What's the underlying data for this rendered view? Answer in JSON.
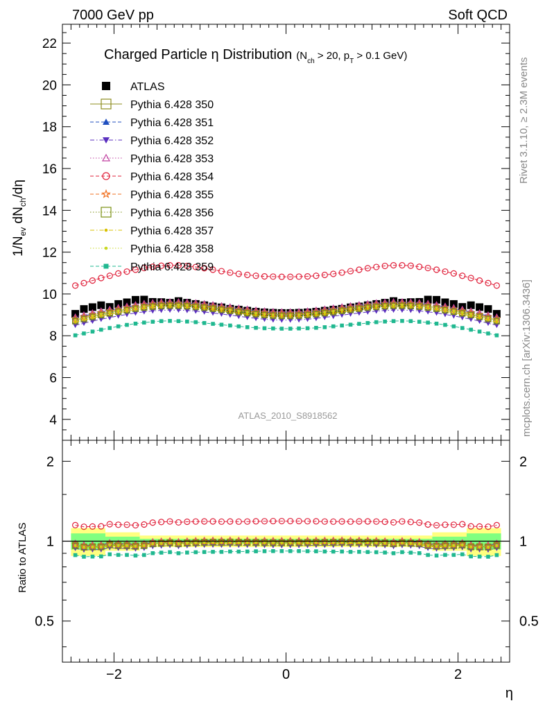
{
  "header": {
    "left": "7000 GeV pp",
    "right": "Soft QCD"
  },
  "side": {
    "rivet": "Rivet 3.1.10, ≥ 2.3M events",
    "mcplots": "mcplots.cern.ch [arXiv:1306.3436]"
  },
  "title": {
    "main": "Charged Particle η Distribution",
    "sub_open": "(N",
    "sub_ch": "ch",
    "sub_mid": " > 20, p",
    "sub_T": "T",
    "sub_close": " > 0.1 GeV)"
  },
  "watermark": "ATLAS_2010_S8918562",
  "ylabel_top": {
    "a": "1/N",
    "b": "ev",
    "c": " dN",
    "d": "ch",
    "e": "/dη"
  },
  "ylabel_bottom": "Ratio to ATLAS",
  "xlabel": "η",
  "chart_data": [
    {
      "type": "scatter",
      "panel": "main",
      "x_ticks": [
        -2,
        0,
        2
      ],
      "x_tick_labels": [
        "−2",
        "0",
        "2"
      ],
      "y_ticks": [
        4,
        6,
        8,
        10,
        12,
        14,
        16,
        18,
        20,
        22
      ],
      "xlim": [
        -2.6,
        2.6
      ],
      "ylim": [
        3.0,
        22.9
      ],
      "x": [
        -2.45,
        -2.35,
        -2.25,
        -2.15,
        -2.05,
        -1.95,
        -1.85,
        -1.75,
        -1.65,
        -1.55,
        -1.45,
        -1.35,
        -1.25,
        -1.15,
        -1.05,
        -0.95,
        -0.85,
        -0.75,
        -0.65,
        -0.55,
        -0.45,
        -0.35,
        -0.25,
        -0.15,
        -0.05,
        0.05,
        0.15,
        0.25,
        0.35,
        0.45,
        0.55,
        0.65,
        0.75,
        0.85,
        0.95,
        1.05,
        1.15,
        1.25,
        1.35,
        1.45,
        1.55,
        1.65,
        1.75,
        1.85,
        1.95,
        2.05,
        2.15,
        2.25,
        2.35,
        2.45
      ],
      "legend": [
        {
          "name": "ATLAS",
          "color": "#000000",
          "marker": "square-filled",
          "dash": "none"
        },
        {
          "name": "Pythia 6.428 350",
          "color": "#8c8c1e",
          "marker": "square-open",
          "dash": "solid"
        },
        {
          "name": "Pythia 6.428 351",
          "color": "#1f4fbf",
          "marker": "triangle-up-filled",
          "dash": "dashed"
        },
        {
          "name": "Pythia 6.428 352",
          "color": "#5a2fbf",
          "marker": "triangle-down-filled",
          "dash": "dashdot"
        },
        {
          "name": "Pythia 6.428 353",
          "color": "#c040a0",
          "marker": "triangle-up-open",
          "dash": "dotted"
        },
        {
          "name": "Pythia 6.428 354",
          "color": "#e0203a",
          "marker": "circle-open",
          "dash": "dashed"
        },
        {
          "name": "Pythia 6.428 355",
          "color": "#f07020",
          "marker": "star-open",
          "dash": "dashed"
        },
        {
          "name": "Pythia 6.428 356",
          "color": "#7a8f10",
          "marker": "square-open",
          "dash": "dotted"
        },
        {
          "name": "Pythia 6.428 357",
          "color": "#d8c000",
          "marker": "dot-small",
          "dash": "dashdot"
        },
        {
          "name": "Pythia 6.428 358",
          "color": "#c8d820",
          "marker": "dot-small",
          "dash": "dotted"
        },
        {
          "name": "Pythia 6.428 359",
          "color": "#20b890",
          "marker": "square-filled-small",
          "dash": "dashed"
        }
      ],
      "series": [
        {
          "name": "ATLAS",
          "values": [
            9.05,
            9.28,
            9.37,
            9.46,
            9.38,
            9.52,
            9.6,
            9.72,
            9.73,
            9.62,
            9.61,
            9.58,
            9.66,
            9.58,
            9.52,
            9.46,
            9.4,
            9.36,
            9.29,
            9.25,
            9.2,
            9.15,
            9.12,
            9.1,
            9.09,
            9.09,
            9.1,
            9.12,
            9.15,
            9.2,
            9.25,
            9.29,
            9.36,
            9.4,
            9.46,
            9.52,
            9.58,
            9.66,
            9.58,
            9.61,
            9.62,
            9.73,
            9.72,
            9.6,
            9.52,
            9.38,
            9.46,
            9.37,
            9.28,
            9.05
          ]
        },
        {
          "name": "Pythia 6.428 350",
          "values": [
            8.75,
            8.85,
            8.95,
            9.04,
            9.12,
            9.2,
            9.27,
            9.34,
            9.4,
            9.44,
            9.47,
            9.48,
            9.48,
            9.46,
            9.43,
            9.39,
            9.34,
            9.29,
            9.24,
            9.18,
            9.13,
            9.08,
            9.04,
            9.01,
            9.0,
            9.0,
            9.01,
            9.04,
            9.08,
            9.13,
            9.18,
            9.24,
            9.29,
            9.34,
            9.39,
            9.43,
            9.46,
            9.48,
            9.48,
            9.47,
            9.44,
            9.4,
            9.34,
            9.27,
            9.2,
            9.12,
            9.04,
            8.95,
            8.85,
            8.75
          ]
        },
        {
          "name": "Pythia 6.428 351",
          "values": [
            8.85,
            8.95,
            9.05,
            9.14,
            9.22,
            9.3,
            9.37,
            9.44,
            9.5,
            9.54,
            9.57,
            9.58,
            9.58,
            9.56,
            9.53,
            9.49,
            9.44,
            9.39,
            9.34,
            9.28,
            9.23,
            9.18,
            9.14,
            9.11,
            9.1,
            9.1,
            9.11,
            9.14,
            9.18,
            9.23,
            9.28,
            9.34,
            9.39,
            9.44,
            9.49,
            9.53,
            9.56,
            9.58,
            9.58,
            9.57,
            9.54,
            9.5,
            9.44,
            9.37,
            9.3,
            9.22,
            9.14,
            9.05,
            8.95,
            8.85
          ]
        },
        {
          "name": "Pythia 6.428 352",
          "values": [
            8.5,
            8.6,
            8.7,
            8.79,
            8.87,
            8.95,
            9.02,
            9.09,
            9.15,
            9.19,
            9.22,
            9.23,
            9.23,
            9.21,
            9.18,
            9.14,
            9.09,
            9.04,
            8.99,
            8.93,
            8.88,
            8.83,
            8.79,
            8.76,
            8.75,
            8.75,
            8.76,
            8.79,
            8.83,
            8.88,
            8.93,
            8.99,
            9.04,
            9.09,
            9.14,
            9.18,
            9.21,
            9.23,
            9.23,
            9.22,
            9.19,
            9.15,
            9.09,
            9.02,
            8.95,
            8.87,
            8.79,
            8.7,
            8.6,
            8.5
          ]
        },
        {
          "name": "Pythia 6.428 353",
          "values": [
            8.9,
            9.0,
            9.1,
            9.19,
            9.27,
            9.35,
            9.42,
            9.49,
            9.55,
            9.59,
            9.62,
            9.63,
            9.63,
            9.61,
            9.58,
            9.54,
            9.49,
            9.44,
            9.39,
            9.33,
            9.28,
            9.23,
            9.19,
            9.16,
            9.15,
            9.15,
            9.16,
            9.19,
            9.23,
            9.28,
            9.33,
            9.39,
            9.44,
            9.49,
            9.54,
            9.58,
            9.61,
            9.63,
            9.63,
            9.62,
            9.59,
            9.55,
            9.49,
            9.42,
            9.35,
            9.27,
            9.19,
            9.1,
            9.0,
            8.9
          ]
        },
        {
          "name": "Pythia 6.428 354",
          "values": [
            10.4,
            10.52,
            10.64,
            10.76,
            10.87,
            10.98,
            11.07,
            11.16,
            11.24,
            11.3,
            11.35,
            11.37,
            11.37,
            11.34,
            11.29,
            11.23,
            11.16,
            11.09,
            11.02,
            10.96,
            10.91,
            10.87,
            10.84,
            10.83,
            10.82,
            10.82,
            10.83,
            10.84,
            10.87,
            10.91,
            10.96,
            11.02,
            11.09,
            11.16,
            11.23,
            11.29,
            11.34,
            11.37,
            11.37,
            11.35,
            11.3,
            11.24,
            11.16,
            11.07,
            10.98,
            10.87,
            10.76,
            10.64,
            10.52,
            10.4
          ]
        },
        {
          "name": "Pythia 6.428 355",
          "values": [
            8.8,
            8.9,
            9.0,
            9.09,
            9.17,
            9.25,
            9.32,
            9.39,
            9.45,
            9.49,
            9.52,
            9.53,
            9.53,
            9.51,
            9.48,
            9.44,
            9.39,
            9.34,
            9.29,
            9.23,
            9.18,
            9.13,
            9.09,
            9.06,
            9.05,
            9.05,
            9.06,
            9.09,
            9.13,
            9.18,
            9.23,
            9.29,
            9.34,
            9.39,
            9.44,
            9.48,
            9.51,
            9.53,
            9.53,
            9.52,
            9.49,
            9.45,
            9.39,
            9.32,
            9.25,
            9.17,
            9.09,
            9.0,
            8.9,
            8.8
          ]
        },
        {
          "name": "Pythia 6.428 356",
          "values": [
            8.7,
            8.8,
            8.9,
            8.99,
            9.07,
            9.15,
            9.22,
            9.29,
            9.35,
            9.39,
            9.42,
            9.43,
            9.43,
            9.41,
            9.38,
            9.34,
            9.29,
            9.24,
            9.19,
            9.13,
            9.08,
            9.03,
            8.99,
            8.96,
            8.95,
            8.95,
            8.96,
            8.99,
            9.03,
            9.08,
            9.13,
            9.19,
            9.24,
            9.29,
            9.34,
            9.38,
            9.41,
            9.43,
            9.43,
            9.42,
            9.39,
            9.35,
            9.29,
            9.22,
            9.15,
            9.07,
            8.99,
            8.9,
            8.8,
            8.7
          ]
        },
        {
          "name": "Pythia 6.428 357",
          "values": [
            8.65,
            8.75,
            8.85,
            8.94,
            9.02,
            9.1,
            9.17,
            9.24,
            9.3,
            9.34,
            9.37,
            9.38,
            9.38,
            9.36,
            9.33,
            9.29,
            9.24,
            9.19,
            9.14,
            9.08,
            9.03,
            8.98,
            8.94,
            8.91,
            8.9,
            8.9,
            8.91,
            8.94,
            8.98,
            9.03,
            9.08,
            9.14,
            9.19,
            9.24,
            9.29,
            9.33,
            9.36,
            9.38,
            9.38,
            9.37,
            9.34,
            9.3,
            9.24,
            9.17,
            9.1,
            9.02,
            8.94,
            8.85,
            8.75,
            8.65
          ]
        },
        {
          "name": "Pythia 6.428 358",
          "values": [
            8.75,
            8.85,
            8.95,
            9.04,
            9.12,
            9.2,
            9.27,
            9.34,
            9.4,
            9.44,
            9.47,
            9.48,
            9.48,
            9.46,
            9.43,
            9.39,
            9.34,
            9.29,
            9.24,
            9.18,
            9.13,
            9.08,
            9.04,
            9.01,
            9.0,
            9.0,
            9.01,
            9.04,
            9.08,
            9.13,
            9.18,
            9.24,
            9.29,
            9.34,
            9.39,
            9.43,
            9.46,
            9.48,
            9.48,
            9.47,
            9.44,
            9.4,
            9.34,
            9.27,
            9.2,
            9.12,
            9.04,
            8.95,
            8.85,
            8.75
          ]
        },
        {
          "name": "Pythia 6.428 359",
          "values": [
            8.02,
            8.11,
            8.2,
            8.29,
            8.37,
            8.45,
            8.52,
            8.58,
            8.63,
            8.67,
            8.7,
            8.71,
            8.7,
            8.68,
            8.65,
            8.61,
            8.57,
            8.53,
            8.49,
            8.45,
            8.41,
            8.38,
            8.36,
            8.35,
            8.34,
            8.34,
            8.35,
            8.36,
            8.38,
            8.41,
            8.45,
            8.49,
            8.53,
            8.57,
            8.61,
            8.65,
            8.68,
            8.7,
            8.71,
            8.7,
            8.67,
            8.63,
            8.58,
            8.52,
            8.45,
            8.37,
            8.29,
            8.2,
            8.11,
            8.02
          ]
        }
      ]
    },
    {
      "type": "scatter",
      "panel": "ratio",
      "y_scale": "log",
      "ylim": [
        0.35,
        2.4
      ],
      "y_ticks": [
        0.5,
        1,
        2
      ],
      "y_tick_labels": [
        "0.5",
        "1",
        "2"
      ],
      "xlim": [
        -2.6,
        2.6
      ],
      "uncertainty_band": {
        "outer_color": "#ffff80",
        "inner_color": "#80ff80",
        "x_edges": [
          -2.5,
          -2.1,
          -1.7,
          1.7,
          2.1,
          2.5
        ],
        "outer_halfwidth": [
          0.12,
          0.08,
          0.05,
          0.08,
          0.12
        ],
        "inner_halfwidth": [
          0.07,
          0.04,
          0.02,
          0.04,
          0.07
        ]
      },
      "reference_line": 1
    }
  ]
}
